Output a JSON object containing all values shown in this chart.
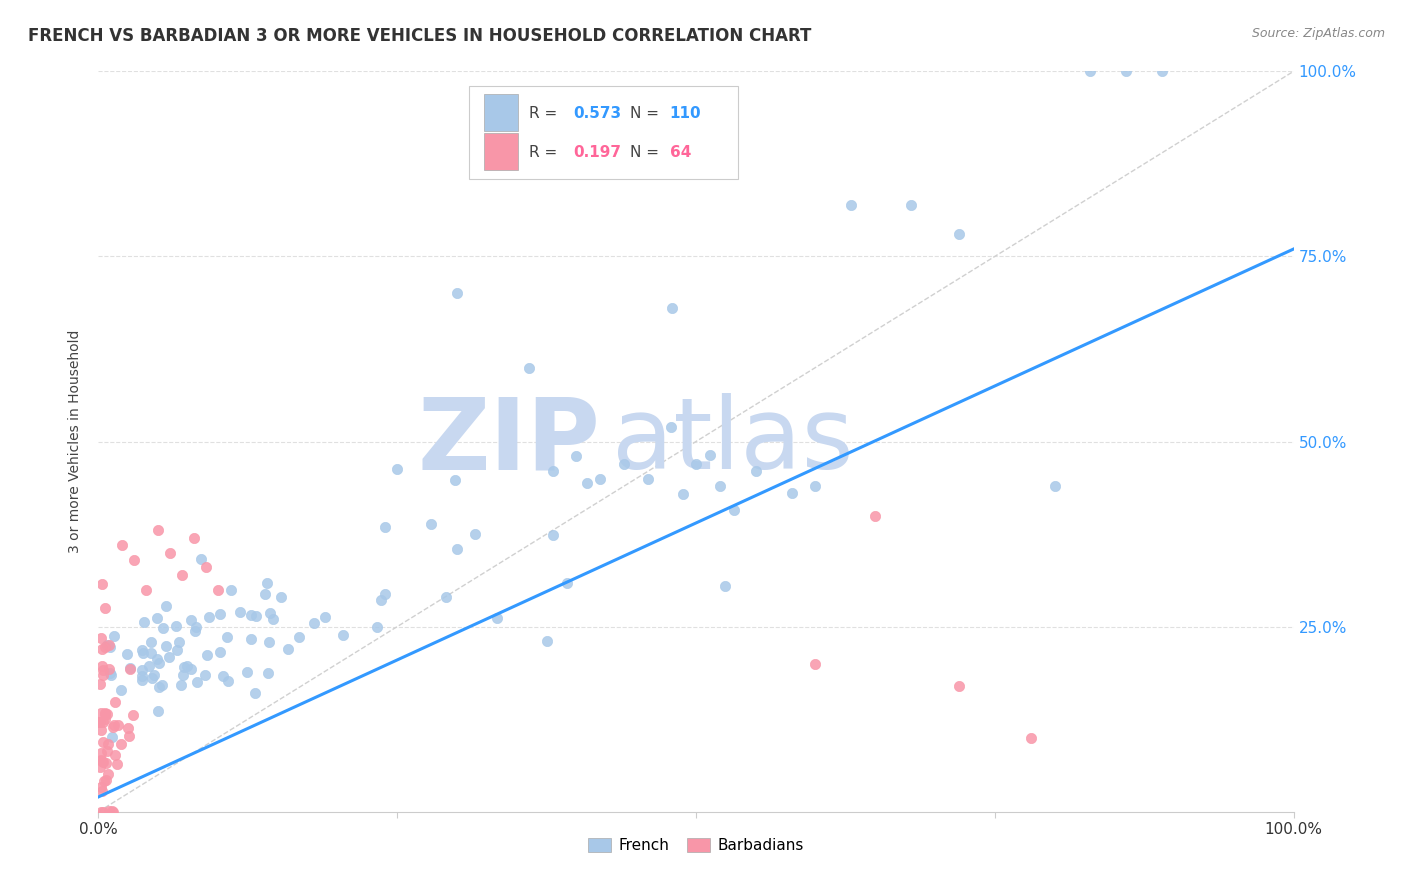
{
  "title": "FRENCH VS BARBADIAN 3 OR MORE VEHICLES IN HOUSEHOLD CORRELATION CHART",
  "source": "Source: ZipAtlas.com",
  "ylabel": "3 or more Vehicles in Household",
  "xlim": [
    0.0,
    1.0
  ],
  "ylim": [
    0.0,
    1.0
  ],
  "xtick_positions": [
    0.0,
    0.25,
    0.5,
    0.75,
    1.0
  ],
  "xtick_labels": [
    "0.0%",
    "",
    "",
    "",
    "100.0%"
  ],
  "ytick_positions": [
    0.25,
    0.5,
    0.75,
    1.0
  ],
  "ytick_labels": [
    "25.0%",
    "50.0%",
    "75.0%",
    "100.0%"
  ],
  "french_color": "#a8c8e8",
  "barbadian_color": "#f896a8",
  "regression_line_color": "#3399ff",
  "diagonal_color": "#d0d0d0",
  "grid_color": "#e0e0e0",
  "french_R": 0.573,
  "french_N": 110,
  "barbadian_R": 0.197,
  "barbadian_N": 64,
  "watermark_zip": "ZIP",
  "watermark_atlas": "atlas",
  "watermark_color": "#c8d8f0",
  "reg_line_x0": 0.0,
  "reg_line_y0": 0.02,
  "reg_line_x1": 1.0,
  "reg_line_y1": 0.76
}
